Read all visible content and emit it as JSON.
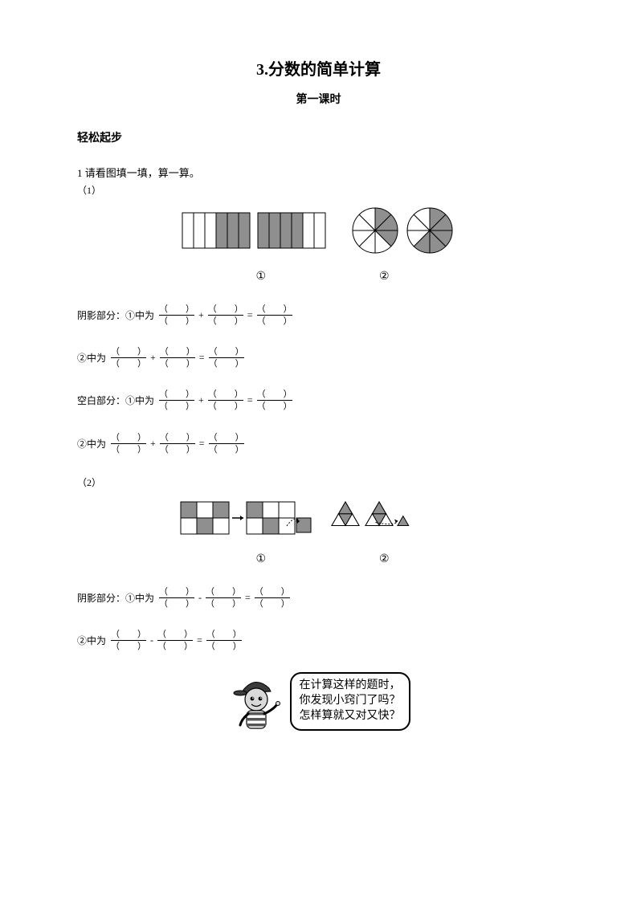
{
  "title": "3.分数的简单计算",
  "subtitle": "第一课时",
  "section_head": "轻松起步",
  "q_prompt": "1 请看图填一填，算一算。",
  "sub1": "（1）",
  "sub2": "（2）",
  "circled1": "①",
  "circled2": "②",
  "rows": {
    "shaded1_lead": "阴影部分：①中为",
    "shaded2_lead": "②中为",
    "blank1_lead": "空白部分：①中为",
    "blank2_lead": "②中为",
    "sub_shaded1_lead": "阴影部分：①中为",
    "sub_shaded2_lead": "②中为"
  },
  "frac_top": "（　　）",
  "frac_bot": "（　　）",
  "op_plus": "+",
  "op_minus": "-",
  "op_eq": "=",
  "bubble": {
    "l1": "在计算这样的题时，",
    "l2": "你发现小窍门了吗？",
    "l3": "怎样算就又对又快？"
  },
  "fig1": {
    "bars": {
      "cols": 6,
      "rect_w": 14,
      "rect_h": 44,
      "gap": 10,
      "left_shaded": [
        false,
        false,
        false,
        true,
        true,
        true
      ],
      "right_shaded": [
        true,
        true,
        true,
        true,
        false,
        false
      ],
      "fill": "#8f8f8f",
      "stroke": "#000000",
      "bg": "#ffffff"
    },
    "pies": {
      "r": 28,
      "slices": 8,
      "left_shaded_count": 3,
      "right_shaded_count": 5,
      "fill": "#8f8f8f",
      "stroke": "#000000",
      "bg": "#ffffff",
      "gap": 12
    }
  },
  "fig2": {
    "grid": {
      "cols": 3,
      "rows": 2,
      "cell": 20,
      "left_pattern": [
        [
          true,
          false,
          true
        ],
        [
          false,
          true,
          false
        ]
      ],
      "right_pattern": [
        [
          true,
          false,
          false
        ],
        [
          false,
          true,
          false
        ]
      ],
      "arrow_gap": 10,
      "move_cell": true,
      "fill": "#8f8f8f",
      "stroke": "#000000",
      "bg": "#ffffff"
    },
    "tris": {
      "side": 34,
      "left_inner_shaded": true,
      "right_inner_shaded": true,
      "extra_small": true,
      "fill": "#8f8f8f",
      "stroke": "#000000",
      "bg": "#ffffff"
    }
  },
  "cartoon": {
    "cap": "#3b3b3b",
    "skin": "#d9d9d9",
    "shirt_stripes": [
      "#ffffff",
      "#555555"
    ],
    "outline": "#000000"
  }
}
